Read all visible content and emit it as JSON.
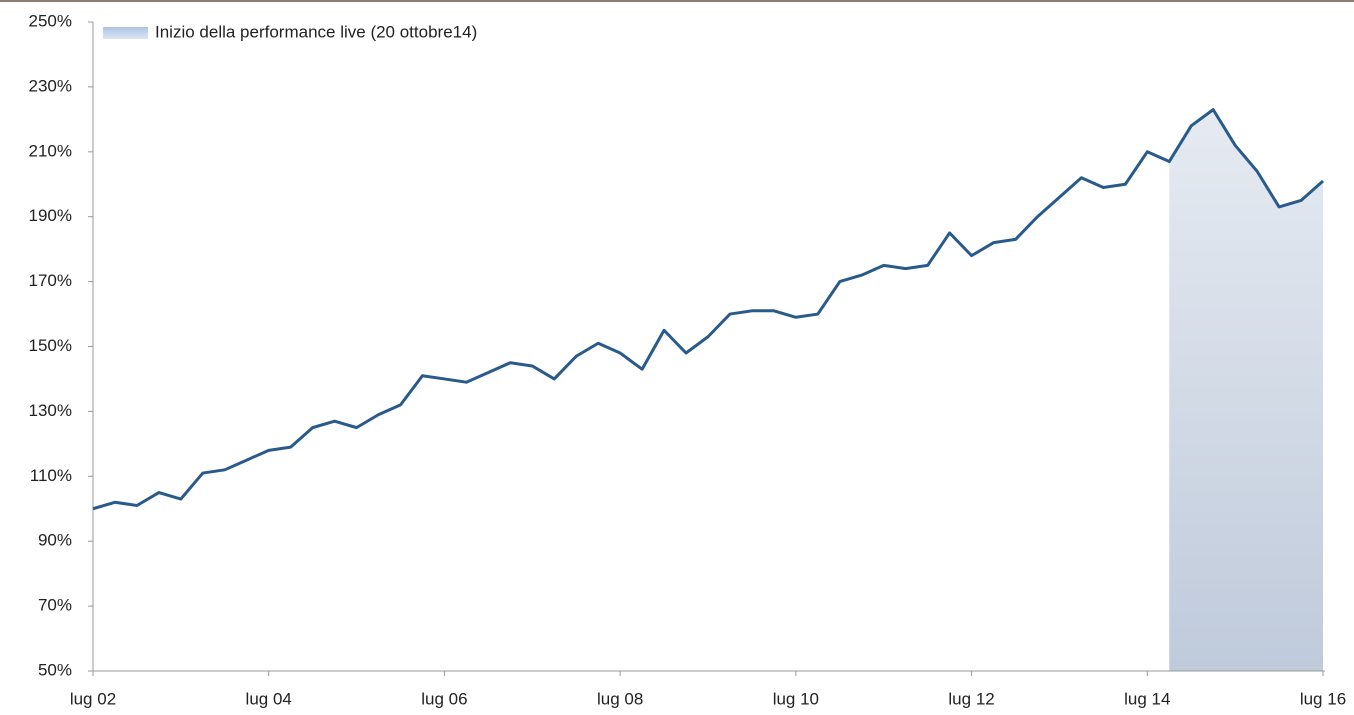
{
  "chart_data": {
    "type": "line",
    "categories": [
      "lug 02",
      null,
      null,
      null,
      null,
      null,
      null,
      null,
      "lug 04",
      null,
      null,
      null,
      null,
      null,
      null,
      null,
      "lug 06",
      null,
      null,
      null,
      null,
      null,
      null,
      null,
      "lug 08",
      null,
      null,
      null,
      null,
      null,
      null,
      null,
      "lug 10",
      null,
      null,
      null,
      null,
      null,
      null,
      null,
      "lug 12",
      null,
      null,
      null,
      null,
      null,
      null,
      null,
      "lug 14",
      null,
      null,
      null,
      null,
      null,
      null,
      null,
      "lug 16"
    ],
    "series": [
      {
        "color": "#285b8c",
        "values": [
          100,
          102,
          101,
          105,
          103,
          111,
          112,
          115,
          118,
          119,
          125,
          127,
          125,
          129,
          132,
          141,
          140,
          139,
          142,
          145,
          144,
          140,
          147,
          151,
          148,
          143,
          155,
          148,
          153,
          160,
          161,
          161,
          159,
          160,
          170,
          172,
          175,
          174,
          175,
          185,
          178,
          182,
          183,
          190,
          196,
          202,
          199,
          200,
          210,
          207,
          218,
          223,
          212,
          204,
          193,
          195,
          201
        ]
      },
      {
        "name": "Inizio della performance live (20 ottobre14)",
        "color": "#b9c6d8",
        "values": [
          null,
          null,
          null,
          null,
          null,
          null,
          null,
          null,
          null,
          null,
          null,
          null,
          null,
          null,
          null,
          null,
          null,
          null,
          null,
          null,
          null,
          null,
          null,
          null,
          null,
          null,
          null,
          null,
          null,
          null,
          null,
          null,
          null,
          null,
          null,
          null,
          null,
          null,
          null,
          null,
          null,
          null,
          null,
          null,
          null,
          null,
          null,
          null,
          null,
          207,
          218,
          223,
          212,
          204,
          193,
          195,
          201
        ]
      }
    ],
    "ylim": [
      50,
      250
    ],
    "yticks": [
      {
        "value": 50,
        "label": "50%"
      },
      {
        "value": 70,
        "label": "70%"
      },
      {
        "value": 90,
        "label": "90%"
      },
      {
        "value": 110,
        "label": "110%"
      },
      {
        "value": 130,
        "label": "130%"
      },
      {
        "value": 150,
        "label": "150%"
      },
      {
        "value": 170,
        "label": "170%"
      },
      {
        "value": 190,
        "label": "190%"
      },
      {
        "value": 210,
        "label": "210%"
      },
      {
        "value": 230,
        "label": "230%"
      },
      {
        "value": 250,
        "label": "250%"
      }
    ],
    "grid": false
  }
}
